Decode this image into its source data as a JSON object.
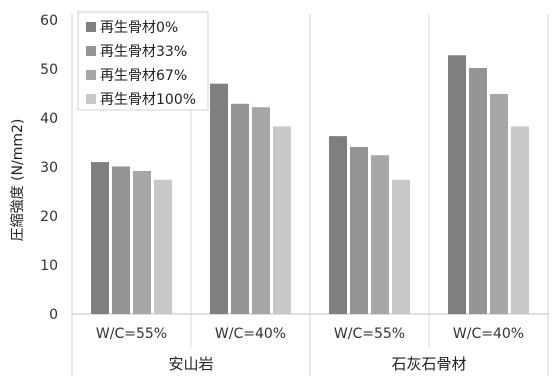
{
  "chart_data": {
    "type": "bar",
    "title": "",
    "xlabel": "",
    "ylabel": "圧縮強度 (N/mm2)",
    "ylim": [
      0,
      60
    ],
    "yticks": [
      0,
      10,
      20,
      30,
      40,
      50,
      60
    ],
    "grid": false,
    "legend_position": "top-left",
    "categories": [
      "W/C=55%",
      "W/C=40%",
      "W/C=55%",
      "W/C=40%"
    ],
    "groups": [
      {
        "label": "安山岩",
        "categories": [
          0,
          1
        ]
      },
      {
        "label": "石灰石骨材",
        "categories": [
          2,
          3
        ]
      }
    ],
    "series": [
      {
        "name": "再生骨材0%",
        "color": "#7f7f7f",
        "values": [
          31.0,
          47.0,
          36.3,
          52.8
        ]
      },
      {
        "name": "再生骨材33%",
        "color": "#959595",
        "values": [
          30.1,
          42.9,
          34.1,
          50.2
        ]
      },
      {
        "name": "再生骨材67%",
        "color": "#a6a6a6",
        "values": [
          29.2,
          42.2,
          32.4,
          44.9
        ]
      },
      {
        "name": "再生骨材100%",
        "color": "#c8c8c8",
        "values": [
          27.4,
          38.3,
          27.4,
          38.3
        ]
      }
    ]
  }
}
